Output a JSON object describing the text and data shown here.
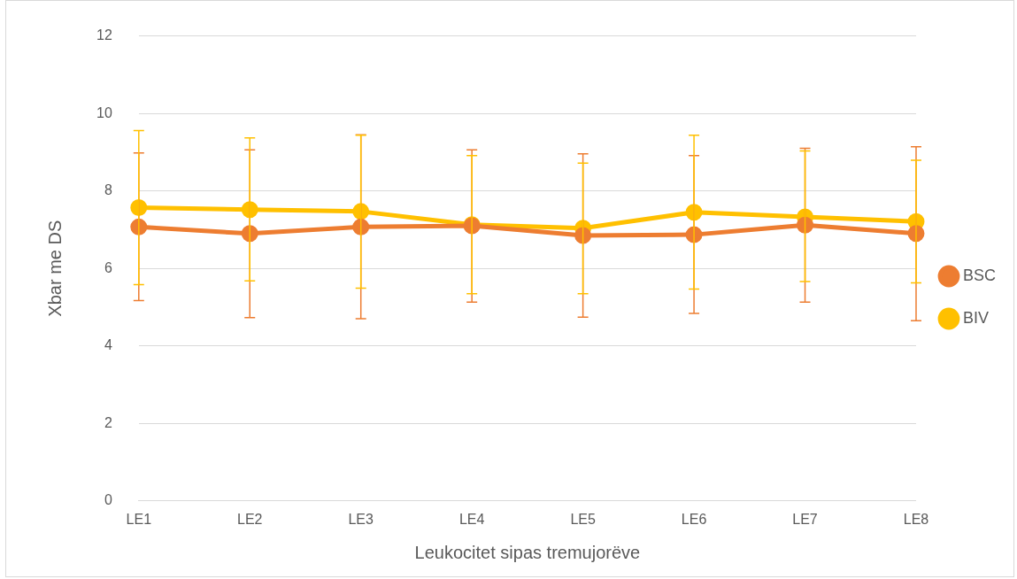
{
  "chart_data": {
    "type": "line",
    "xlabel": "Leukocitet sipas tremujorëve",
    "ylabel": "Xbar me DS",
    "categories": [
      "LE1",
      "LE2",
      "LE3",
      "LE4",
      "LE5",
      "LE6",
      "LE7",
      "LE8"
    ],
    "series": [
      {
        "name": "BSC",
        "color": "#ed7d31",
        "values": [
          7.07,
          6.9,
          7.07,
          7.1,
          6.85,
          6.87,
          7.12,
          6.9
        ],
        "errors": [
          [
            5.17,
            8.98
          ],
          [
            4.73,
            9.06
          ],
          [
            4.7,
            9.45
          ],
          [
            5.13,
            9.06
          ],
          [
            4.74,
            8.96
          ],
          [
            4.84,
            8.91
          ],
          [
            5.13,
            9.1
          ],
          [
            4.65,
            9.14
          ]
        ]
      },
      {
        "name": "BIV",
        "color": "#ffc000",
        "values": [
          7.57,
          7.52,
          7.47,
          7.13,
          7.04,
          7.45,
          7.33,
          7.21
        ],
        "errors": [
          [
            5.58,
            9.56
          ],
          [
            5.68,
            9.37
          ],
          [
            5.49,
            9.44
          ],
          [
            5.35,
            8.91
          ],
          [
            5.35,
            8.72
          ],
          [
            5.47,
            9.44
          ],
          [
            5.66,
            9.03
          ],
          [
            5.63,
            8.79
          ]
        ]
      }
    ],
    "ylim": [
      0,
      12
    ],
    "yticks": [
      0,
      2,
      4,
      6,
      8,
      10,
      12
    ],
    "grid": "y",
    "legend": "right",
    "marker": "circle",
    "line_style": "solid"
  }
}
